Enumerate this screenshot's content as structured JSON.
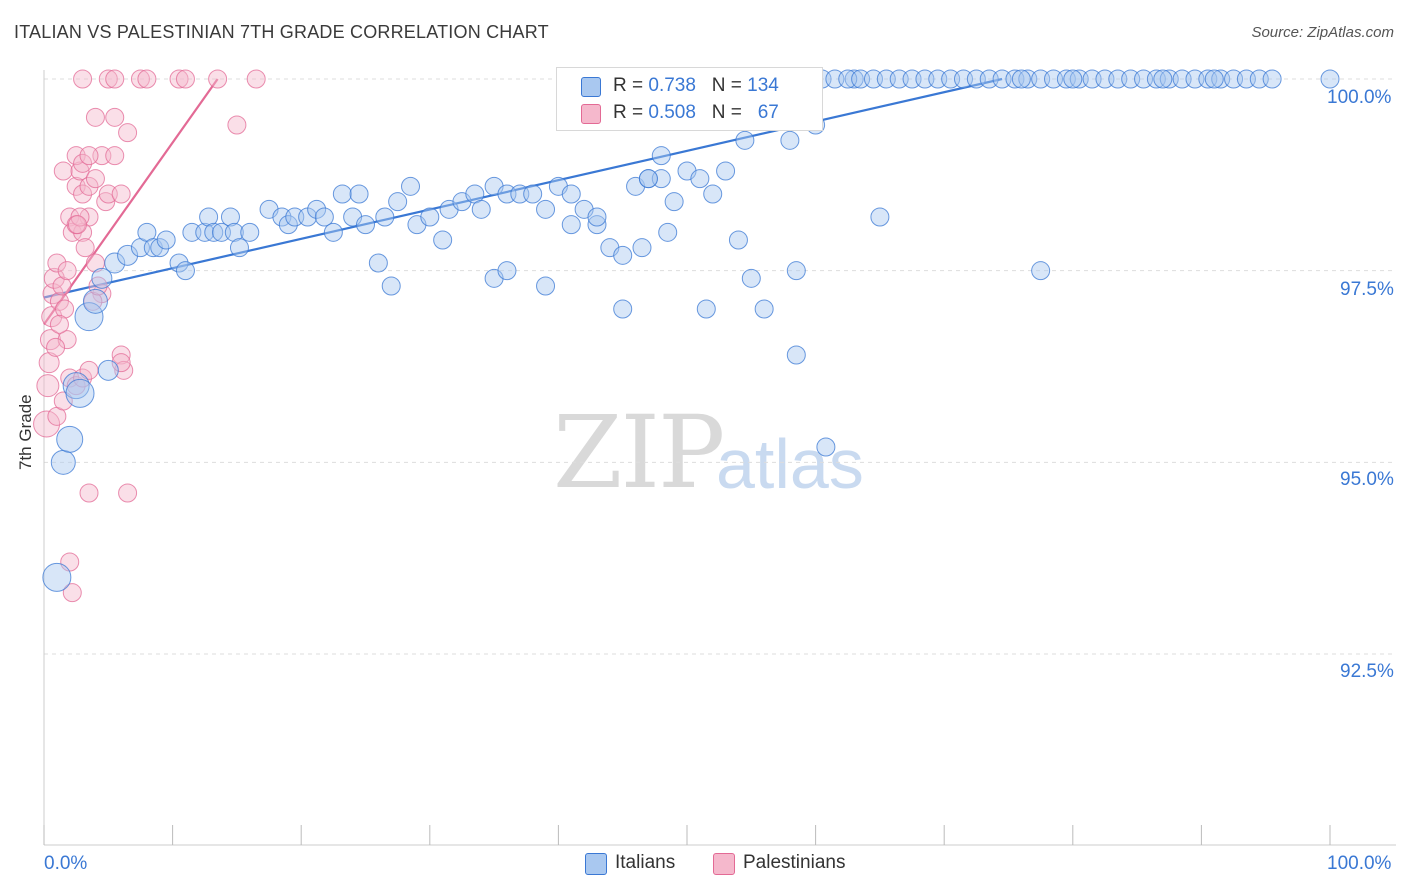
{
  "title": "ITALIAN VS PALESTINIAN 7TH GRADE CORRELATION CHART",
  "source": "Source: ZipAtlas.com",
  "watermark": {
    "zip": "ZIP",
    "atlas": "atlas"
  },
  "legend_top": {
    "italians": {
      "r_label": "R = ",
      "r_value": "0.738",
      "n_label": "N = ",
      "n_value": "134"
    },
    "palestinians": {
      "r_label": "R = ",
      "r_value": "0.508",
      "n_label": "N = ",
      "n_value": "67"
    }
  },
  "legend_bottom": {
    "italians": "Italians",
    "palestinians": "Palestinians"
  },
  "colors": {
    "italians": "#3a78d4",
    "italians_fill": "#a9c8f0",
    "palestinians": "#e36a95",
    "palestinians_fill": "#f5b8cc",
    "grid": "#dddddd"
  },
  "chart_data": {
    "type": "scatter",
    "title": "ITALIAN VS PALESTINIAN 7TH GRADE CORRELATION CHART",
    "xlabel": "",
    "ylabel": "7th Grade",
    "xlim": [
      0,
      100
    ],
    "ylim": [
      90.3,
      100.2
    ],
    "x_tick_labels": [
      "0.0%",
      "100.0%"
    ],
    "y_ticks": [
      92.5,
      95.0,
      97.5,
      100.0
    ],
    "y_tick_labels": [
      "92.5%",
      "95.0%",
      "97.5%",
      "100.0%"
    ],
    "series": [
      {
        "name": "Italians",
        "r": 0.738,
        "n": 134,
        "trend": {
          "x": [
            0,
            74.5
          ],
          "y": [
            97.15,
            100.0
          ]
        },
        "points": [
          [
            1,
            93.5,
            14
          ],
          [
            1.5,
            95.0,
            12
          ],
          [
            2,
            95.3,
            13
          ],
          [
            2.5,
            96.0,
            13
          ],
          [
            2.8,
            95.9,
            14
          ],
          [
            3.5,
            96.9,
            14
          ],
          [
            4,
            97.1,
            12
          ],
          [
            5,
            96.2,
            10
          ],
          [
            4.5,
            97.4,
            10
          ],
          [
            5.5,
            97.6,
            10
          ],
          [
            6.5,
            97.7,
            10
          ],
          [
            7.5,
            97.8,
            9
          ],
          [
            8,
            98.0,
            9
          ],
          [
            8.5,
            97.8,
            9
          ],
          [
            9,
            97.8,
            9
          ],
          [
            9.5,
            97.9,
            9
          ],
          [
            10.5,
            97.6,
            9
          ],
          [
            11,
            97.5,
            9
          ],
          [
            11.5,
            98.0,
            9
          ],
          [
            12.5,
            98.0,
            9
          ],
          [
            12.8,
            98.2,
            9
          ],
          [
            13.2,
            98.0,
            9
          ],
          [
            13.8,
            98.0,
            9
          ],
          [
            14.5,
            98.2,
            9
          ],
          [
            14.8,
            98.0,
            9
          ],
          [
            15.2,
            97.8,
            9
          ],
          [
            16,
            98.0,
            9
          ],
          [
            17.5,
            98.3,
            9
          ],
          [
            18.5,
            98.2,
            9
          ],
          [
            19,
            98.1,
            9
          ],
          [
            19.5,
            98.2,
            9
          ],
          [
            20.5,
            98.2,
            9
          ],
          [
            21.2,
            98.3,
            9
          ],
          [
            21.8,
            98.2,
            9
          ],
          [
            22.5,
            98.0,
            9
          ],
          [
            23.2,
            98.5,
            9
          ],
          [
            24,
            98.2,
            9
          ],
          [
            24.5,
            98.5,
            9
          ],
          [
            25,
            98.1,
            9
          ],
          [
            26.5,
            98.2,
            9
          ],
          [
            27.5,
            98.4,
            9
          ],
          [
            28.5,
            98.6,
            9
          ],
          [
            26,
            97.6,
            9
          ],
          [
            27,
            97.3,
            9
          ],
          [
            29,
            98.1,
            9
          ],
          [
            30,
            98.2,
            9
          ],
          [
            31,
            97.9,
            9
          ],
          [
            31.5,
            98.3,
            9
          ],
          [
            32.5,
            98.4,
            9
          ],
          [
            33.5,
            98.5,
            9
          ],
          [
            34,
            98.3,
            9
          ],
          [
            35,
            98.6,
            9
          ],
          [
            36,
            98.5,
            9
          ],
          [
            37,
            98.5,
            9
          ],
          [
            38,
            98.5,
            9
          ],
          [
            39,
            98.3,
            9
          ],
          [
            40,
            98.6,
            9
          ],
          [
            41,
            98.5,
            9
          ],
          [
            42,
            98.3,
            9
          ],
          [
            43,
            98.1,
            9
          ],
          [
            44,
            97.8,
            9
          ],
          [
            45,
            97.7,
            9
          ],
          [
            46,
            98.6,
            9
          ],
          [
            47,
            98.7,
            9
          ],
          [
            48,
            98.7,
            9
          ],
          [
            49,
            98.4,
            9
          ],
          [
            50,
            98.8,
            9
          ],
          [
            51,
            98.7,
            9
          ],
          [
            52,
            98.5,
            9
          ],
          [
            53,
            98.8,
            9
          ],
          [
            54,
            97.9,
            9
          ],
          [
            55,
            97.4,
            9
          ],
          [
            56,
            97.0,
            9
          ],
          [
            41,
            98.1,
            9
          ],
          [
            43,
            98.2,
            9
          ],
          [
            47,
            98.7,
            9
          ],
          [
            48,
            99.0,
            9
          ],
          [
            35,
            97.4,
            9
          ],
          [
            36,
            97.5,
            9
          ],
          [
            39,
            97.3,
            9
          ],
          [
            45,
            97.0,
            9
          ],
          [
            46.5,
            97.8,
            9
          ],
          [
            48.5,
            98.0,
            9
          ],
          [
            51.5,
            97.0,
            9
          ],
          [
            54.5,
            99.2,
            9
          ],
          [
            58,
            99.2,
            9
          ],
          [
            60,
            99.4,
            9
          ],
          [
            63,
            100.0,
            9
          ],
          [
            58.5,
            96.4,
            9
          ],
          [
            58.5,
            97.5,
            9
          ],
          [
            60.8,
            95.2,
            9
          ],
          [
            49.5,
            100.0,
            9
          ],
          [
            51,
            100.0,
            9
          ],
          [
            53,
            100.0,
            9
          ],
          [
            55,
            100.0,
            9
          ],
          [
            56.5,
            100.0,
            9
          ],
          [
            57.5,
            100.0,
            9
          ],
          [
            58.5,
            100.0,
            9
          ],
          [
            59.5,
            100.0,
            9
          ],
          [
            60.5,
            100.0,
            9
          ],
          [
            61.5,
            100.0,
            9
          ],
          [
            62.5,
            100.0,
            9
          ],
          [
            63.5,
            100.0,
            9
          ],
          [
            64.5,
            100.0,
            9
          ],
          [
            65.5,
            100.0,
            9
          ],
          [
            66.5,
            100.0,
            9
          ],
          [
            67.5,
            100.0,
            9
          ],
          [
            68.5,
            100.0,
            9
          ],
          [
            69.5,
            100.0,
            9
          ],
          [
            70.5,
            100.0,
            9
          ],
          [
            71.5,
            100.0,
            9
          ],
          [
            72.5,
            100.0,
            9
          ],
          [
            73.5,
            100.0,
            9
          ],
          [
            74.5,
            100.0,
            9
          ],
          [
            75.5,
            100.0,
            9
          ],
          [
            76.5,
            100.0,
            9
          ],
          [
            77.5,
            100.0,
            9
          ],
          [
            78.5,
            100.0,
            9
          ],
          [
            79.5,
            100.0,
            9
          ],
          [
            80.5,
            100.0,
            9
          ],
          [
            81.5,
            100.0,
            9
          ],
          [
            82.5,
            100.0,
            9
          ],
          [
            83.5,
            100.0,
            9
          ],
          [
            84.5,
            100.0,
            9
          ],
          [
            85.5,
            100.0,
            9
          ],
          [
            86.5,
            100.0,
            9
          ],
          [
            87.5,
            100.0,
            9
          ],
          [
            88.5,
            100.0,
            9
          ],
          [
            89.5,
            100.0,
            9
          ],
          [
            90.5,
            100.0,
            9
          ],
          [
            91.5,
            100.0,
            9
          ],
          [
            92.5,
            100.0,
            9
          ],
          [
            93.5,
            100.0,
            9
          ],
          [
            94.5,
            100.0,
            9
          ],
          [
            95.5,
            100.0,
            9
          ],
          [
            100,
            100.0,
            9
          ],
          [
            76,
            100.0,
            9
          ],
          [
            80,
            100.0,
            9
          ],
          [
            65,
            98.2,
            9
          ],
          [
            77.5,
            97.5,
            9
          ],
          [
            87,
            100.0,
            9
          ],
          [
            91,
            100.0,
            9
          ]
        ]
      },
      {
        "name": "Palestinians",
        "r": 0.508,
        "n": 67,
        "trend": {
          "x": [
            0,
            13.5
          ],
          "y": [
            96.8,
            100.0
          ]
        },
        "points": [
          [
            0.2,
            95.5,
            13
          ],
          [
            0.3,
            96.0,
            11
          ],
          [
            0.4,
            96.3,
            10
          ],
          [
            0.5,
            96.6,
            10
          ],
          [
            0.6,
            96.9,
            10
          ],
          [
            0.7,
            97.2,
            10
          ],
          [
            0.8,
            97.4,
            10
          ],
          [
            1.0,
            97.6,
            9
          ],
          [
            1.2,
            97.1,
            9
          ],
          [
            1.4,
            97.3,
            9
          ],
          [
            1.6,
            97.0,
            9
          ],
          [
            1.8,
            96.6,
            9
          ],
          [
            1.0,
            95.6,
            9
          ],
          [
            1.5,
            95.8,
            9
          ],
          [
            2.0,
            96.1,
            9
          ],
          [
            2.5,
            96.0,
            9
          ],
          [
            3.0,
            96.1,
            9
          ],
          [
            3.5,
            96.2,
            9
          ],
          [
            1.5,
            98.8,
            9
          ],
          [
            2.0,
            98.2,
            9
          ],
          [
            2.2,
            98.0,
            9
          ],
          [
            2.5,
            98.6,
            9
          ],
          [
            2.8,
            98.8,
            9
          ],
          [
            3.0,
            98.5,
            9
          ],
          [
            3.5,
            98.2,
            9
          ],
          [
            3.0,
            98.0,
            9
          ],
          [
            3.2,
            97.8,
            9
          ],
          [
            3.5,
            98.6,
            9
          ],
          [
            4.0,
            98.7,
            9
          ],
          [
            4.5,
            99.0,
            9
          ],
          [
            4.8,
            98.4,
            9
          ],
          [
            5.0,
            98.5,
            9
          ],
          [
            5.5,
            99.0,
            9
          ],
          [
            6.0,
            98.5,
            9
          ],
          [
            6.5,
            99.3,
            9
          ],
          [
            2.5,
            99.0,
            9
          ],
          [
            3.0,
            98.9,
            9
          ],
          [
            3.5,
            99.0,
            9
          ],
          [
            4.0,
            99.5,
            9
          ],
          [
            5.5,
            99.5,
            9
          ],
          [
            3.0,
            100.0,
            9
          ],
          [
            5.0,
            100.0,
            9
          ],
          [
            5.5,
            100.0,
            9
          ],
          [
            7.5,
            100.0,
            9
          ],
          [
            8.0,
            100.0,
            9
          ],
          [
            10.5,
            100.0,
            9
          ],
          [
            11.0,
            100.0,
            9
          ],
          [
            13.5,
            100.0,
            9
          ],
          [
            16.5,
            100.0,
            9
          ],
          [
            15.0,
            99.4,
            9
          ],
          [
            6.0,
            96.4,
            9
          ],
          [
            6.2,
            96.2,
            9
          ],
          [
            3.5,
            94.6,
            9
          ],
          [
            6.5,
            94.6,
            9
          ],
          [
            2.0,
            93.7,
            9
          ],
          [
            2.2,
            93.3,
            9
          ],
          [
            4.5,
            97.2,
            9
          ],
          [
            4.0,
            97.6,
            9
          ],
          [
            2.5,
            98.1,
            9
          ],
          [
            3.8,
            97.1,
            9
          ],
          [
            1.8,
            97.5,
            9
          ],
          [
            2.8,
            98.2,
            9
          ],
          [
            1.2,
            96.8,
            9
          ],
          [
            0.9,
            96.5,
            9
          ],
          [
            4.2,
            97.3,
            9
          ],
          [
            6.0,
            96.3,
            9
          ],
          [
            2.6,
            98.1,
            9
          ]
        ]
      }
    ]
  }
}
